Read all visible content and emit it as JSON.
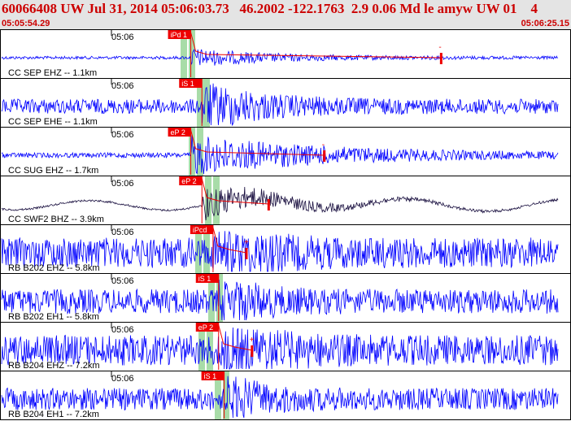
{
  "header": {
    "title": "60066408 UW Jul 31, 2014 05:06:03.73   46.2002 -122.1763  2.9 0.06 Md le amyw UW 01    4",
    "start_time": "05:05:54.29",
    "end_time": "05:06:25.15"
  },
  "chart_data": {
    "type": "line",
    "time_tick_label": "05:06",
    "colors": {
      "trace": "#0000ff",
      "trace_dark": "#1a1040",
      "pick": "#ee0000",
      "window": "#a8dca8",
      "header_text": "#cc0000"
    },
    "channels": [
      {
        "label": "CC SEP EHZ -- 1.1km",
        "pick": "iPd 1",
        "amp": 0.22,
        "noise": 0.06,
        "arrival": 0.34,
        "decay": 0.15,
        "dark": false,
        "coda": true,
        "marker": "-",
        "marker_at": 0.79
      },
      {
        "label": "CC SEP EHE -- 1.1km",
        "pick": "iS 1",
        "amp": 0.55,
        "noise": 0.3,
        "arrival": 0.36,
        "decay": 0.1,
        "dark": false,
        "coda": false,
        "marker": "",
        "marker_at": 0
      },
      {
        "label": "CC SUG EHZ -- 1.7km",
        "pick": "eP 2",
        "amp": 0.48,
        "noise": 0.1,
        "arrival": 0.34,
        "decay": 0.25,
        "dark": false,
        "coda": true,
        "marker": "-",
        "marker_at": 0.58
      },
      {
        "label": "CC SWF2 BHZ -- 3.9km",
        "pick": "eP 2",
        "amp": 0.42,
        "noise": 0.04,
        "arrival": 0.36,
        "decay": 0.15,
        "dark": true,
        "coda": true,
        "marker": "",
        "marker_at": 0.48
      },
      {
        "label": "RB B202 EHZ -- 5.8km",
        "pick": "iPcd",
        "amp": 0.55,
        "noise": 0.62,
        "arrival": 0.38,
        "decay": 0.08,
        "dark": false,
        "coda": true,
        "marker": "+",
        "marker_at": 0.44
      },
      {
        "label": "RB B202 EH1 -- 5.8km",
        "pick": "iS 1",
        "amp": 0.55,
        "noise": 0.5,
        "arrival": 0.39,
        "decay": 0.06,
        "dark": false,
        "coda": false,
        "marker": "",
        "marker_at": 0
      },
      {
        "label": "RB B204 EHZ -- 7.2km",
        "pick": "eP 2",
        "amp": 0.6,
        "noise": 0.62,
        "arrival": 0.39,
        "decay": 0.08,
        "dark": false,
        "coda": true,
        "marker": "+",
        "marker_at": 0.45
      },
      {
        "label": "RB B204 EH1 -- 7.2km",
        "pick": "iS 1",
        "amp": 0.5,
        "noise": 0.45,
        "arrival": 0.4,
        "decay": 0.06,
        "dark": false,
        "coda": false,
        "marker": "",
        "marker_at": 0
      }
    ]
  }
}
